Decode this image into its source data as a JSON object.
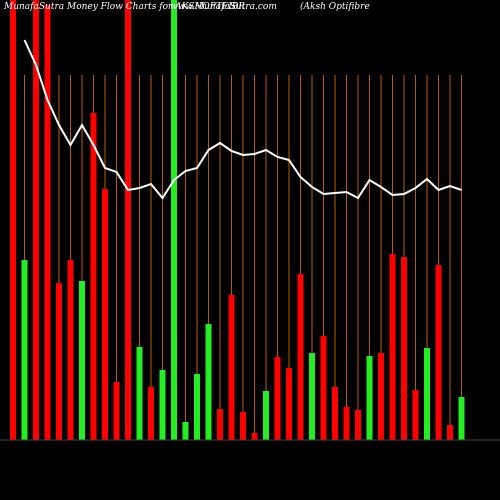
{
  "chart_data": {
    "type": "bar",
    "title": "MunafaSutra  Money Flow  Charts for AKSHOPTFIBR",
    "site": "www.MunafaSutra.com",
    "subtitle": "(Aksh Optifibre",
    "ylim": [
      0,
      440
    ],
    "bars": {
      "values": [
        440,
        180,
        440,
        435,
        157,
        180,
        159,
        327,
        251,
        58,
        440,
        93,
        53,
        70,
        440,
        18,
        66,
        116,
        31,
        145,
        28,
        7,
        49,
        83,
        72,
        166,
        87,
        104,
        53,
        33,
        30,
        84,
        87,
        186,
        183,
        50,
        92,
        175,
        15,
        43
      ],
      "colors": [
        "#ff0000",
        "#22ee22",
        "#ff0000",
        "#ff0000",
        "#ff0000",
        "#ff0000",
        "#22ee22",
        "#ff0000",
        "#ff0000",
        "#ff0000",
        "#ff0000",
        "#22ee22",
        "#ff0000",
        "#22ee22",
        "#22ee22",
        "#22ee22",
        "#22ee22",
        "#22ee22",
        "#ff0000",
        "#ff0000",
        "#ff0000",
        "#ff0000",
        "#22ee22",
        "#ff0000",
        "#ff0000",
        "#ff0000",
        "#22ee22",
        "#ff0000",
        "#ff0000",
        "#ff0000",
        "#ff0000",
        "#22ee22",
        "#ff0000",
        "#ff0000",
        "#ff0000",
        "#ff0000",
        "#22ee22",
        "#ff0000",
        "#ff0000",
        "#22ee22"
      ]
    },
    "line": {
      "color": "#ffffff",
      "values": [
        null,
        400,
        375,
        340,
        315,
        295,
        315,
        295,
        272,
        268,
        250,
        252,
        256,
        242,
        260,
        269,
        272,
        290,
        297,
        289,
        285,
        286,
        290,
        283,
        280,
        263,
        253,
        246,
        247,
        248,
        242,
        260,
        253,
        245,
        246,
        252,
        261,
        250,
        254,
        250
      ]
    }
  }
}
